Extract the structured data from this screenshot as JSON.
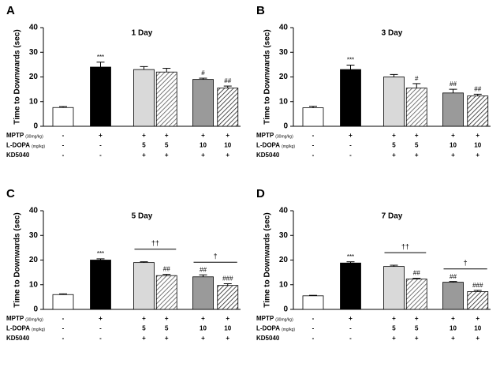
{
  "chart_data": [
    {
      "type": "bar",
      "panel": "A",
      "title": "1 Day",
      "ylabel": "Time to Downwards (sec)",
      "categories": [
        null,
        null,
        null,
        null,
        null,
        null
      ],
      "values": [
        7.6,
        24,
        23,
        22,
        19,
        15.5
      ],
      "errors": [
        0.4,
        2,
        1.2,
        1.5,
        0.5,
        0.8
      ],
      "significance": [
        null,
        "***",
        null,
        null,
        "#",
        "##"
      ],
      "bracket_labels": [
        null,
        null,
        null,
        null,
        null,
        null
      ],
      "colors": [
        "#ffffff",
        "#000000",
        "#d9d9d9",
        "#555555",
        "#9a9a9a",
        "#222222"
      ],
      "hatched": [
        false,
        false,
        false,
        true,
        false,
        true
      ],
      "ylim": [
        0,
        40
      ],
      "yticks": [
        0,
        10,
        20,
        30,
        40
      ],
      "rows": [
        {
          "label": "MPTP",
          "unit": "(30mg/kg)",
          "cells": [
            "-",
            "+",
            "+",
            "+",
            "+",
            "+"
          ]
        },
        {
          "label": "L-DOPA",
          "unit": "(mg/kg)",
          "cells": [
            "-",
            "-",
            "5",
            "5",
            "10",
            "10"
          ]
        },
        {
          "label": "KD5040",
          "unit": null,
          "cells": [
            "-",
            "-",
            "+",
            "+",
            "+",
            "+"
          ]
        }
      ]
    },
    {
      "type": "bar",
      "panel": "B",
      "title": "3 Day",
      "ylabel": "Time to Downwards (sec)",
      "categories": [
        null,
        null,
        null,
        null,
        null,
        null
      ],
      "values": [
        7.5,
        23,
        20,
        15.5,
        13.5,
        12.3
      ],
      "errors": [
        0.6,
        1.8,
        1,
        1.8,
        1.5,
        0.7
      ],
      "significance": [
        null,
        "***",
        null,
        "#",
        "##",
        "##"
      ],
      "bracket_labels": [
        null,
        null,
        null,
        null,
        null,
        null
      ],
      "colors": [
        "#ffffff",
        "#000000",
        "#d9d9d9",
        "#555555",
        "#9a9a9a",
        "#222222"
      ],
      "hatched": [
        false,
        false,
        false,
        true,
        false,
        true
      ],
      "ylim": [
        0,
        40
      ],
      "yticks": [
        0,
        10,
        20,
        30,
        40
      ],
      "rows": [
        {
          "label": "MPTP",
          "unit": "(30mg/kg)",
          "cells": [
            "-",
            "+",
            "+",
            "+",
            "+",
            "+"
          ]
        },
        {
          "label": "L-DOPA",
          "unit": "(mg/kg)",
          "cells": [
            "-",
            "-",
            "5",
            "5",
            "10",
            "10"
          ]
        },
        {
          "label": "KD5040",
          "unit": null,
          "cells": [
            "-",
            "-",
            "+",
            "+",
            "+",
            "+"
          ]
        }
      ]
    },
    {
      "type": "bar",
      "panel": "C",
      "title": "5 Day",
      "ylabel": "Time to Downwards (sec)",
      "categories": [
        null,
        null,
        null,
        null,
        null,
        null
      ],
      "values": [
        6,
        20,
        19,
        13.7,
        13.2,
        9.7
      ],
      "errors": [
        0.3,
        0.5,
        0.3,
        0.5,
        0.8,
        0.7
      ],
      "significance": [
        null,
        "***",
        null,
        "##",
        "##",
        "###"
      ],
      "bracket_labels": [
        null,
        null,
        "††",
        null,
        "†",
        null
      ],
      "colors": [
        "#ffffff",
        "#000000",
        "#d9d9d9",
        "#555555",
        "#9a9a9a",
        "#222222"
      ],
      "hatched": [
        false,
        false,
        false,
        true,
        false,
        true
      ],
      "ylim": [
        0,
        40
      ],
      "yticks": [
        0,
        10,
        20,
        30,
        40
      ],
      "rows": [
        {
          "label": "MPTP",
          "unit": "(30mg/kg)",
          "cells": [
            "-",
            "+",
            "+",
            "+",
            "+",
            "+"
          ]
        },
        {
          "label": "L-DOPA",
          "unit": "(mg/kg)",
          "cells": [
            "-",
            "-",
            "5",
            "5",
            "10",
            "10"
          ]
        },
        {
          "label": "KD5040",
          "unit": null,
          "cells": [
            "-",
            "-",
            "+",
            "+",
            "+",
            "+"
          ]
        }
      ]
    },
    {
      "type": "bar",
      "panel": "D",
      "title": "7 Day",
      "ylabel": "Time to Downwards (sec)",
      "categories": [
        null,
        null,
        null,
        null,
        null,
        null
      ],
      "values": [
        5.5,
        18.8,
        17.4,
        12.3,
        11,
        7.2
      ],
      "errors": [
        0.2,
        0.5,
        0.5,
        0.3,
        0.3,
        0.5
      ],
      "significance": [
        null,
        "***",
        null,
        "##",
        "##",
        "###"
      ],
      "bracket_labels": [
        null,
        null,
        "††",
        null,
        "†",
        null
      ],
      "colors": [
        "#ffffff",
        "#000000",
        "#d9d9d9",
        "#555555",
        "#9a9a9a",
        "#222222"
      ],
      "hatched": [
        false,
        false,
        false,
        true,
        false,
        true
      ],
      "ylim": [
        0,
        40
      ],
      "yticks": [
        0,
        10,
        20,
        30,
        40
      ],
      "rows": [
        {
          "label": "MPTP",
          "unit": "(30mg/kg)",
          "cells": [
            "-",
            "+",
            "+",
            "+",
            "+",
            "+"
          ]
        },
        {
          "label": "L-DOPA",
          "unit": "(mg/kg)",
          "cells": [
            "-",
            "-",
            "5",
            "5",
            "10",
            "10"
          ]
        },
        {
          "label": "KD5040",
          "unit": null,
          "cells": [
            "-",
            "-",
            "+",
            "+",
            "+",
            "+"
          ]
        }
      ]
    }
  ]
}
